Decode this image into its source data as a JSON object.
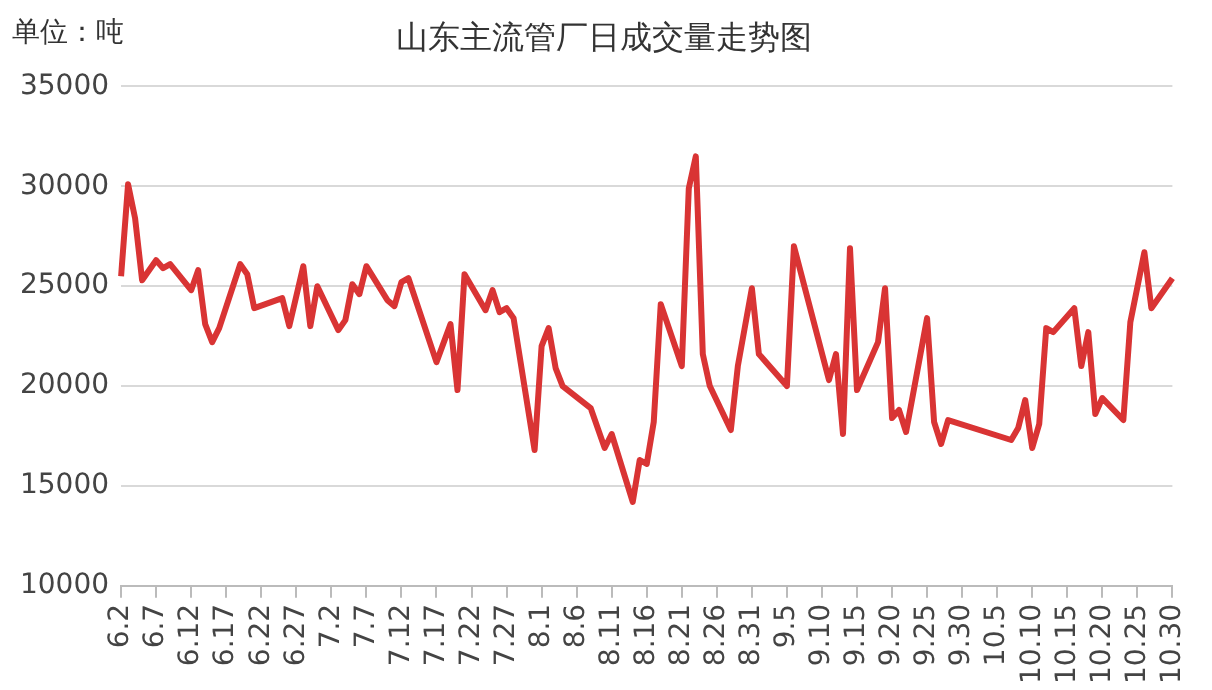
{
  "chart_data": {
    "type": "line",
    "title": "山东主流管厂日成交量走势图",
    "ylabel": "单位：吨",
    "categories": [
      "6.2",
      null,
      null,
      null,
      null,
      "6.7",
      null,
      null,
      null,
      null,
      "6.12",
      null,
      null,
      null,
      null,
      "6.17",
      null,
      null,
      null,
      null,
      "6.22",
      null,
      null,
      null,
      null,
      "6.27",
      null,
      null,
      null,
      null,
      "7.2",
      null,
      null,
      null,
      null,
      "7.7",
      null,
      null,
      null,
      null,
      "7.12",
      null,
      null,
      null,
      null,
      "7.17",
      null,
      null,
      null,
      null,
      "7.22",
      null,
      null,
      null,
      null,
      "7.27",
      null,
      null,
      null,
      null,
      "8.1",
      null,
      null,
      null,
      null,
      "8.6",
      null,
      null,
      null,
      null,
      "8.11",
      null,
      null,
      null,
      null,
      "8.16",
      null,
      null,
      null,
      null,
      "8.21",
      null,
      null,
      null,
      null,
      "8.26",
      null,
      null,
      null,
      null,
      "8.31",
      null,
      null,
      null,
      null,
      "9.5",
      null,
      null,
      null,
      null,
      "9.10",
      null,
      null,
      null,
      null,
      "9.15",
      null,
      null,
      null,
      null,
      "9.20",
      null,
      null,
      null,
      null,
      "9.25",
      null,
      null,
      null,
      null,
      "9.30",
      null,
      null,
      null,
      null,
      "10.5",
      null,
      null,
      null,
      null,
      "10.10",
      null,
      null,
      null,
      null,
      "10.15",
      null,
      null,
      null,
      null,
      "10.20",
      null,
      null,
      null,
      null,
      "10.25",
      null,
      null,
      null,
      null,
      "10.30"
    ],
    "series": [
      {
        "color": "#d93434",
        "values": [
          25500,
          30100,
          28400,
          25300,
          null,
          26300,
          25900,
          26100,
          null,
          null,
          24800,
          25800,
          23100,
          22200,
          22900,
          null,
          null,
          26100,
          25600,
          23900,
          null,
          null,
          null,
          24400,
          23000,
          null,
          26000,
          23000,
          25000,
          null,
          null,
          22800,
          23300,
          25100,
          24600,
          26000,
          null,
          null,
          24300,
          24000,
          25200,
          25400,
          null,
          null,
          null,
          21200,
          null,
          23100,
          19800,
          25600,
          null,
          null,
          23800,
          24800,
          23700,
          23900,
          23400,
          null,
          null,
          16800,
          22000,
          22900,
          20900,
          20000,
          null,
          null,
          null,
          18900,
          null,
          16900,
          17600,
          null,
          null,
          14200,
          16300,
          16100,
          18200,
          24100,
          null,
          null,
          21000,
          29900,
          31500,
          21600,
          20000,
          null,
          null,
          17800,
          21000,
          null,
          24900,
          21600,
          null,
          null,
          20400,
          20000,
          27000,
          null,
          null,
          null,
          null,
          20300,
          21600,
          17600,
          26900,
          19800,
          null,
          null,
          22200,
          24900,
          18400,
          18800,
          17700,
          null,
          null,
          23400,
          18200,
          17100,
          18300,
          null,
          null,
          null,
          null,
          null,
          null,
          null,
          null,
          17300,
          17900,
          19300,
          16900,
          18100,
          22900,
          22700,
          null,
          null,
          23900,
          21000,
          22700,
          18600,
          19400,
          null,
          null,
          18300,
          23200,
          null,
          26700,
          23900,
          null,
          null,
          25400
        ]
      }
    ],
    "ylim": [
      10000,
      35000
    ],
    "yticks": [
      10000,
      15000,
      20000,
      25000,
      30000,
      35000
    ],
    "grid": "y",
    "legend": false,
    "marker": "none",
    "line_style": "solid"
  }
}
